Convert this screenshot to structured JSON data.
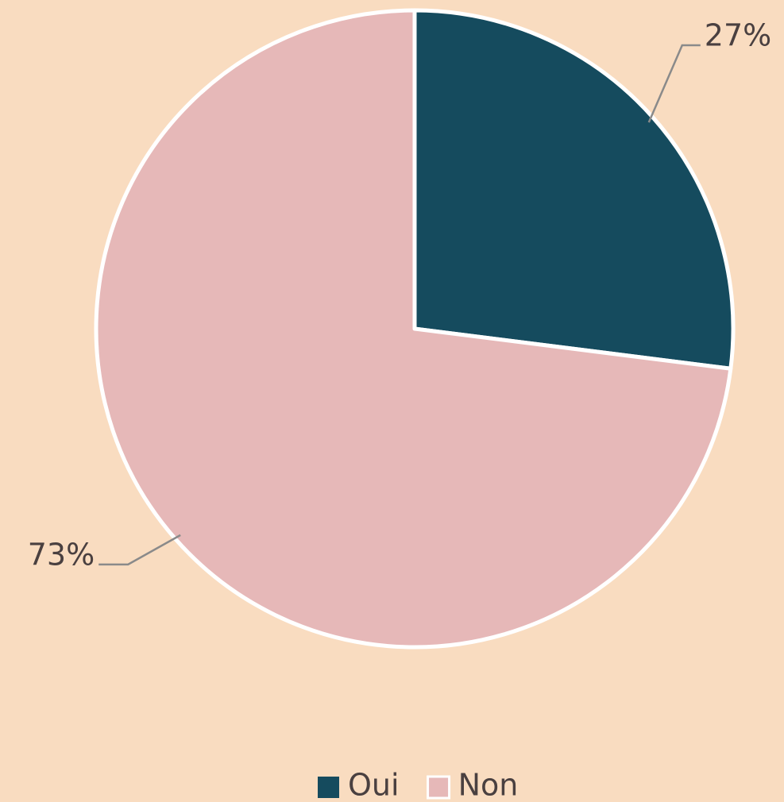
{
  "chart_data": {
    "type": "pie",
    "categories": [
      "Oui",
      "Non"
    ],
    "values": [
      27,
      73
    ],
    "value_labels": [
      "27%",
      "73%"
    ],
    "colors": [
      "#154b5e",
      "#e6b8b8"
    ],
    "legend": "bottom"
  }
}
